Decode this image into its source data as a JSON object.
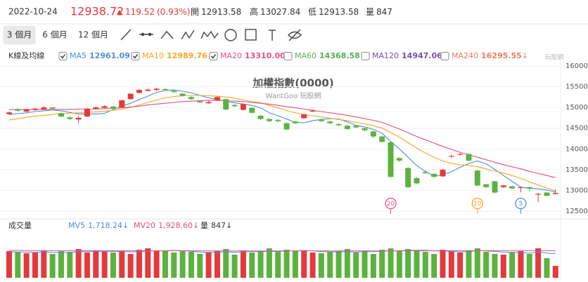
{
  "header": {
    "date": "2022-10-24",
    "price": 12938.72,
    "change": 119.52,
    "change_pct": {
      "value": 0.93,
      "label": "(0.93%)"
    },
    "stats": [
      {
        "label": "開",
        "value": 12913.58
      },
      {
        "label": "高",
        "value": 13027.84
      },
      {
        "label": "低",
        "value": 12913.58
      },
      {
        "label": "量",
        "value": 847
      }
    ]
  },
  "toolbar": {
    "ranges": [
      "3 個月",
      "6 個月",
      "12 個月"
    ],
    "active": 0
  },
  "chart_data": {
    "type": "candlestick",
    "title": "加權指數(0000)",
    "subtitle": "WantGoo 玩股網",
    "logo": "玩股網",
    "legend_title": "K線及均線",
    "up_color": "#e5393d",
    "down_color": "#5cb23f",
    "grid": true,
    "ylim": [
      12350,
      16100
    ],
    "yticks": [
      12500,
      13000,
      13500,
      14000,
      14500,
      15000,
      15500,
      16000
    ],
    "candles": [
      [
        14840,
        14900,
        14820,
        14880
      ],
      [
        14960,
        14980,
        14900,
        14920
      ],
      [
        14900,
        14970,
        14880,
        14950
      ],
      [
        14940,
        14990,
        14920,
        14970
      ],
      [
        14960,
        15020,
        14950,
        15000
      ],
      [
        15000,
        15010,
        14950,
        14970
      ],
      [
        14860,
        14880,
        14760,
        14780
      ],
      [
        14760,
        14790,
        14700,
        14720
      ],
      [
        14710,
        14800,
        14620,
        14750
      ],
      [
        14780,
        14990,
        14770,
        14970
      ],
      [
        14970,
        15030,
        14950,
        15000
      ],
      [
        14990,
        15050,
        14980,
        15030
      ],
      [
        15020,
        15040,
        14950,
        14970
      ],
      [
        15000,
        15190,
        14990,
        15170
      ],
      [
        15200,
        15340,
        15190,
        15330
      ],
      [
        15350,
        15440,
        15340,
        15420
      ],
      [
        15400,
        15450,
        15390,
        15430
      ],
      [
        15420,
        15470,
        15400,
        15450
      ],
      [
        15440,
        15460,
        15400,
        15420
      ],
      [
        15400,
        15420,
        15350,
        15370
      ],
      [
        15330,
        15350,
        15260,
        15280
      ],
      [
        15250,
        15270,
        15180,
        15200
      ],
      [
        15150,
        15170,
        15100,
        15120
      ],
      [
        15100,
        15160,
        15090,
        15130
      ],
      [
        15170,
        15270,
        15160,
        15250
      ],
      [
        15200,
        15210,
        14930,
        14950
      ],
      [
        15060,
        15080,
        15010,
        15030
      ],
      [
        14940,
        15100,
        14930,
        15080
      ],
      [
        14990,
        15010,
        14850,
        14870
      ],
      [
        14800,
        14820,
        14700,
        14720
      ],
      [
        14720,
        14740,
        14650,
        14670
      ],
      [
        14700,
        14720,
        14640,
        14670
      ],
      [
        14620,
        14640,
        14450,
        14470
      ],
      [
        14660,
        14680,
        14600,
        14620
      ],
      [
        14740,
        14850,
        14730,
        14830
      ],
      [
        14900,
        14950,
        14890,
        14920
      ],
      [
        14700,
        14730,
        14650,
        14670
      ],
      [
        14660,
        14680,
        14600,
        14620
      ],
      [
        14600,
        14620,
        14550,
        14570
      ],
      [
        14560,
        14580,
        14460,
        14480
      ],
      [
        14560,
        14580,
        14500,
        14520
      ],
      [
        14500,
        14510,
        14420,
        14450
      ],
      [
        14420,
        14440,
        14260,
        14300
      ],
      [
        14300,
        14320,
        14150,
        14170
      ],
      [
        14160,
        14180,
        13300,
        13330
      ],
      [
        13780,
        13800,
        13680,
        13720
      ],
      [
        13540,
        13560,
        13060,
        13080
      ],
      [
        13300,
        13320,
        13150,
        13170
      ],
      [
        13450,
        13480,
        13400,
        13420
      ],
      [
        13400,
        13420,
        13300,
        13330
      ],
      [
        13340,
        13520,
        13320,
        13500
      ],
      [
        13820,
        13860,
        13780,
        13830
      ],
      [
        13860,
        13900,
        13840,
        13880
      ],
      [
        13880,
        13890,
        13700,
        13720
      ],
      [
        13480,
        13500,
        13100,
        13120
      ],
      [
        13150,
        13160,
        13060,
        13080
      ],
      [
        13220,
        13240,
        12930,
        12950
      ],
      [
        13080,
        13140,
        13060,
        13120
      ],
      [
        13100,
        13120,
        13030,
        13050
      ],
      [
        13060,
        13100,
        12950,
        13080
      ],
      [
        13080,
        13090,
        12980,
        13050
      ],
      [
        12900,
        12940,
        12720,
        12920
      ],
      [
        12950,
        12960,
        12860,
        12870
      ],
      [
        12914,
        13028,
        12914,
        12939
      ]
    ],
    "ma": [
      {
        "name": "MA5",
        "value": 12961.09,
        "trend": "↓",
        "color": "#4a8fdc",
        "checked": true,
        "values": [
          14830,
          14850,
          14870,
          14900,
          14920,
          14940,
          14920,
          14880,
          14840,
          14840,
          14840,
          14860,
          14950,
          15030,
          15100,
          15190,
          15270,
          15360,
          15410,
          15420,
          15390,
          15350,
          15290,
          15230,
          15190,
          15140,
          15110,
          15080,
          15050,
          14990,
          14870,
          14800,
          14720,
          14640,
          14630,
          14680,
          14710,
          14730,
          14720,
          14650,
          14570,
          14530,
          14470,
          14380,
          14180,
          14000,
          13800,
          13600,
          13460,
          13340,
          13380,
          13450,
          13560,
          13650,
          13710,
          13640,
          13510,
          13360,
          13220,
          13080,
          13050,
          13040,
          13010,
          12961
        ]
      },
      {
        "name": "MA10",
        "value": 12989.76,
        "trend": "↓",
        "color": "#f5a623",
        "checked": true,
        "values": [
          14700,
          14730,
          14760,
          14790,
          14810,
          14830,
          14850,
          14860,
          14870,
          14880,
          14890,
          14910,
          14930,
          14960,
          15000,
          15060,
          15120,
          15180,
          15230,
          15260,
          15280,
          15290,
          15290,
          15280,
          15270,
          15250,
          15220,
          15180,
          15140,
          15110,
          15050,
          14990,
          14920,
          14870,
          14830,
          14800,
          14770,
          14740,
          14710,
          14680,
          14640,
          14600,
          14560,
          14500,
          14400,
          14280,
          14150,
          14020,
          13900,
          13800,
          13710,
          13650,
          13620,
          13600,
          13570,
          13520,
          13470,
          13420,
          13360,
          13290,
          13210,
          13130,
          13060,
          12990
        ]
      },
      {
        "name": "MA20",
        "value": {
          "value": 13310,
          "label": "13310.00"
        },
        "trend": "↓",
        "color": "#e2507f",
        "checked": true,
        "values": [
          14950,
          14950,
          14950,
          14950,
          14950,
          14950,
          14950,
          14950,
          14960,
          14960,
          14960,
          14970,
          14980,
          14990,
          15010,
          15030,
          15060,
          15080,
          15100,
          15120,
          15140,
          15150,
          15160,
          15170,
          15170,
          15160,
          15150,
          15140,
          15120,
          15100,
          15080,
          15050,
          15020,
          14990,
          14960,
          14930,
          14900,
          14870,
          14840,
          14810,
          14770,
          14730,
          14690,
          14640,
          14560,
          14480,
          14390,
          14300,
          14220,
          14140,
          14060,
          13990,
          13920,
          13860,
          13800,
          13740,
          13680,
          13620,
          13570,
          13520,
          13460,
          13410,
          13360,
          13310
        ]
      },
      {
        "name": "MA60",
        "value": 14368.58,
        "trend": "↓",
        "color": "#52b34a",
        "checked": false
      },
      {
        "name": "MA120",
        "value": 14947.06,
        "trend": "↓",
        "color": "#7a4fb0",
        "checked": false
      },
      {
        "name": "MA240",
        "value": 16295.55,
        "trend": "↓",
        "color": "#f07b5a",
        "checked": false
      }
    ],
    "markers": [
      {
        "label": "20",
        "color": "#e2507f"
      },
      {
        "label": "10",
        "color": "#f5a623"
      },
      {
        "label": "5",
        "color": "#4a8fdc"
      }
    ],
    "volume": {
      "title": "成交量",
      "ylim": [
        0,
        2500
      ],
      "values": [
        1900,
        1850,
        1750,
        1800,
        1950,
        1700,
        1900,
        1850,
        2050,
        1800,
        1950,
        1850,
        1800,
        1950,
        1700,
        2000,
        2100,
        1900,
        1950,
        1800,
        1900,
        1850,
        1700,
        1800,
        1900,
        2050,
        1650,
        1950,
        1800,
        1900,
        2100,
        1850,
        2000,
        1950,
        1900,
        1800,
        1750,
        1850,
        1900,
        2050,
        1800,
        1950,
        1700,
        2000,
        2100,
        1900,
        2050,
        1950,
        1850,
        1700,
        2000,
        1900,
        1800,
        1950,
        2100,
        1850,
        1700,
        1650,
        1800,
        1900,
        1700,
        2100,
        1400,
        847
      ],
      "lines": [
        {
          "name": "MV5",
          "value": {
            "value": 1718.24,
            "label": "1,718.24"
          },
          "trend": "↓",
          "color": "#4a8fdc",
          "values": [
            1850,
            1840,
            1830,
            1810,
            1850,
            1810,
            1820,
            1800,
            1870,
            1860,
            1880,
            1880,
            1890,
            1870,
            1850,
            1860,
            1900,
            1930,
            1930,
            1950,
            1930,
            1890,
            1840,
            1810,
            1820,
            1850,
            1820,
            1860,
            1870,
            1870,
            1890,
            1860,
            1930,
            1920,
            1950,
            1920,
            1870,
            1850,
            1840,
            1870,
            1830,
            1870,
            1860,
            1900,
            1910,
            1930,
            1950,
            1960,
            1970,
            1920,
            1910,
            1890,
            1850,
            1870,
            1950,
            1920,
            1880,
            1830,
            1820,
            1800,
            1750,
            1830,
            1760,
            1718
          ]
        },
        {
          "name": "MV20",
          "value": {
            "value": 1928.6,
            "label": "1,928.60"
          },
          "trend": "↓",
          "color": "#e2507f",
          "values": [
            1950,
            1950,
            1945,
            1940,
            1940,
            1935,
            1935,
            1930,
            1930,
            1930,
            1930,
            1930,
            1925,
            1925,
            1920,
            1920,
            1920,
            1925,
            1925,
            1930,
            1930,
            1930,
            1925,
            1920,
            1920,
            1920,
            1915,
            1915,
            1915,
            1915,
            1920,
            1920,
            1920,
            1925,
            1925,
            1920,
            1920,
            1915,
            1915,
            1920,
            1920,
            1920,
            1915,
            1915,
            1920,
            1920,
            1925,
            1925,
            1930,
            1930,
            1930,
            1935,
            1935,
            1935,
            1940,
            1940,
            1940,
            1935,
            1935,
            1935,
            1930,
            1930,
            1930,
            1928.6
          ]
        }
      ],
      "current": {
        "name": "量",
        "value": 847,
        "trend": "↓"
      }
    }
  }
}
